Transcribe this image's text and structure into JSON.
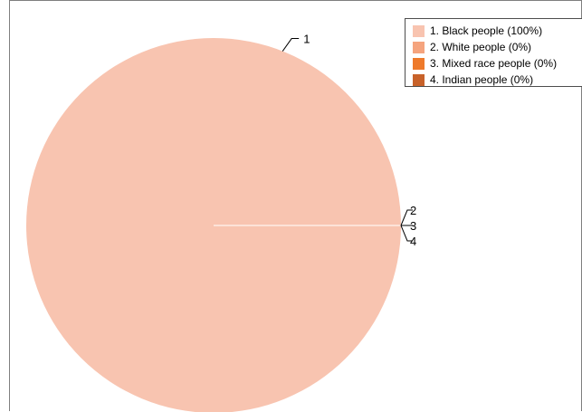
{
  "chart_data": {
    "type": "pie",
    "title": "",
    "slices": [
      {
        "index": "1",
        "label": "Black people",
        "value": 100,
        "color": "#F8C4B0"
      },
      {
        "index": "2",
        "label": "White people",
        "value": 0,
        "color": "#F5A47E"
      },
      {
        "index": "3",
        "label": "Mixed race people",
        "value": 0,
        "color": "#EE7A2B"
      },
      {
        "index": "4",
        "label": "Indian people",
        "value": 0,
        "color": "#C8622A"
      }
    ],
    "legend": {
      "placement": "top-right",
      "entries": [
        "1. Black people (100%)",
        "2. White people (0%)",
        "3. Mixed race people (0%)",
        "4. Indian people (0%)"
      ]
    },
    "callout_labels": [
      "1",
      "2",
      "3",
      "4"
    ]
  }
}
